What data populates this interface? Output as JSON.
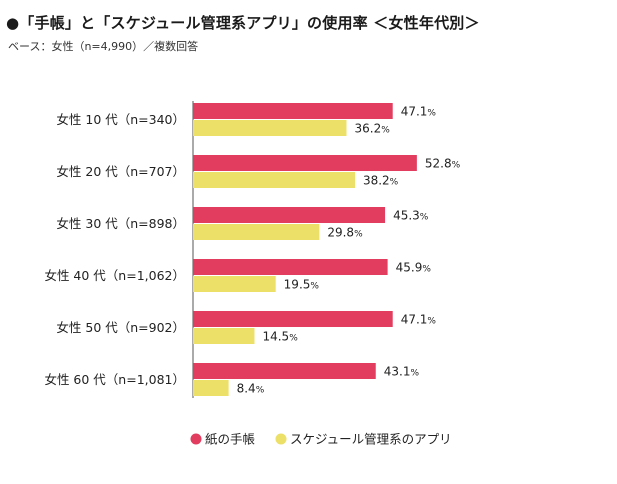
{
  "title": "●「手帳」と「スケジュール管理系アプリ」の使用率 ＜女性年代別＞",
  "subtitle": "ベース：女性（n=4,990）／複数回答",
  "chart_data": {
    "type": "bar",
    "orientation": "horizontal",
    "unit": "%",
    "categories": [
      "女性 10 代（n=340）",
      "女性 20 代（n=707）",
      "女性 30 代（n=898）",
      "女性 40 代（n=1,062）",
      "女性 50 代（n=902）",
      "女性 60 代（n=1,081）"
    ],
    "series": [
      {
        "name": "紙の手帳",
        "color": "#e23d5f",
        "values": [
          47.1,
          52.8,
          45.3,
          45.9,
          47.1,
          43.1
        ]
      },
      {
        "name": "スケジュール管理系のアプリ",
        "color": "#ece068",
        "values": [
          36.2,
          38.2,
          29.8,
          19.5,
          14.5,
          8.4
        ]
      }
    ],
    "xlim": [
      0,
      100
    ],
    "grid": false,
    "legend_position": "bottom"
  }
}
